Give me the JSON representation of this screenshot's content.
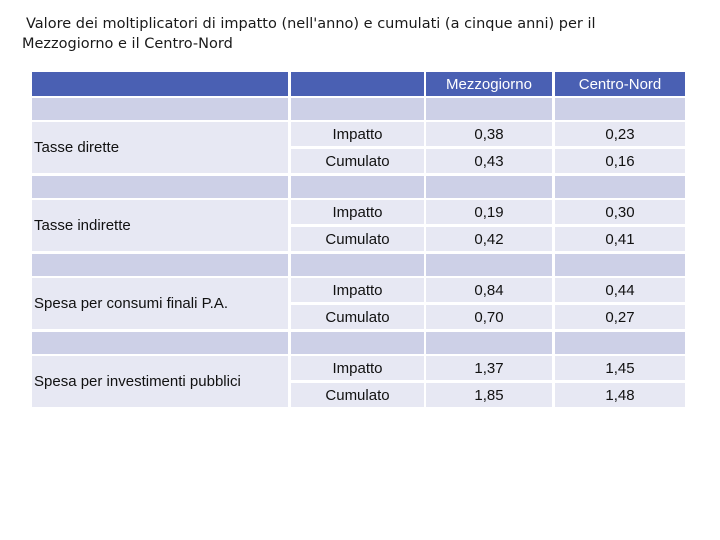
{
  "title": {
    "line1": "Valore dei moltiplicatori di impatto (nell'anno) e cumulati (a cinque anni) per il",
    "line2": "Mezzogiorno e il Centro-Nord"
  },
  "table": {
    "headers": [
      "",
      "",
      "Mezzogiorno",
      "Centro-Nord"
    ],
    "groups": [
      {
        "label": "Tasse dirette",
        "rows": [
          {
            "type": "Impatto",
            "mezzogiorno": "0,38",
            "centro_nord": "0,23"
          },
          {
            "type": "Cumulato",
            "mezzogiorno": "0,43",
            "centro_nord": "0,16"
          }
        ]
      },
      {
        "label": "Tasse indirette",
        "rows": [
          {
            "type": "Impatto",
            "mezzogiorno": "0,19",
            "centro_nord": "0,30"
          },
          {
            "type": "Cumulato",
            "mezzogiorno": "0,42",
            "centro_nord": "0,41"
          }
        ]
      },
      {
        "label": "Spesa per consumi finali P.A.",
        "rows": [
          {
            "type": "Impatto",
            "mezzogiorno": "0,84",
            "centro_nord": "0,44"
          },
          {
            "type": "Cumulato",
            "mezzogiorno": "0,70",
            "centro_nord": "0,27"
          }
        ]
      },
      {
        "label": "Spesa per investimenti pubblici",
        "rows": [
          {
            "type": "Impatto",
            "mezzogiorno": "1,37",
            "centro_nord": "1,45"
          },
          {
            "type": "Cumulato",
            "mezzogiorno": "1,85",
            "centro_nord": "1,48"
          }
        ]
      }
    ]
  }
}
